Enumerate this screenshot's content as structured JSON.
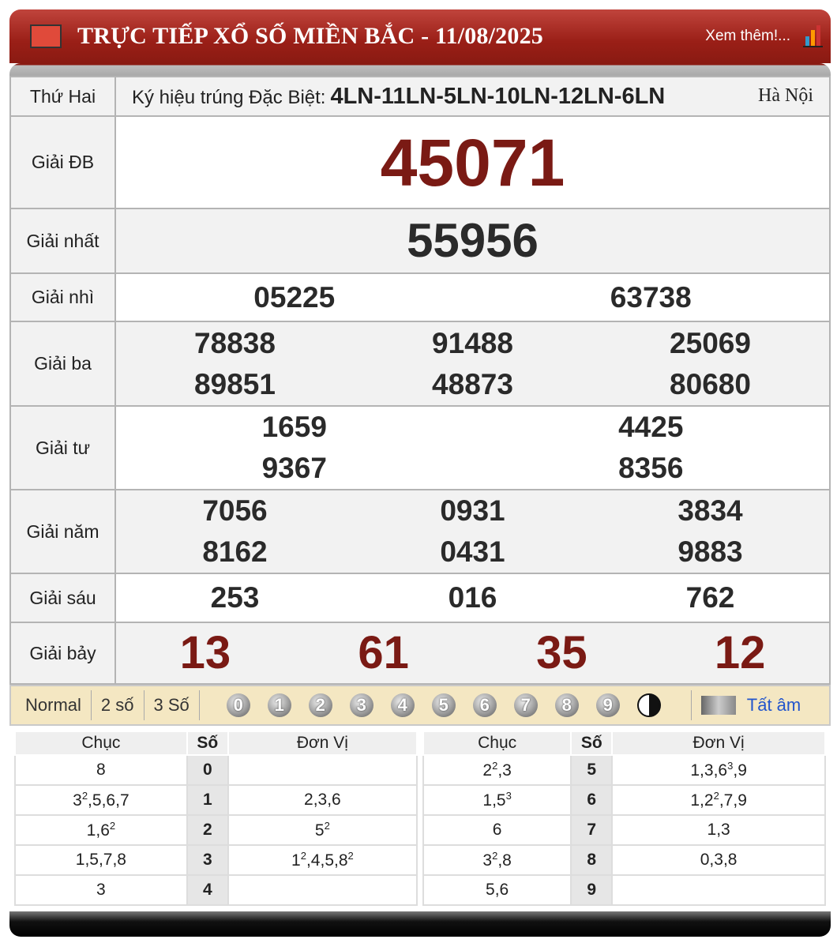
{
  "header": {
    "title": "TRỰC TIẾP XỔ SỐ MIỀN BẮC - 11/08/2025",
    "more": "Xem thêm!..."
  },
  "info": {
    "day": "Thứ Hai",
    "symbol_label": "Ký hiệu trúng Đặc Biệt:",
    "symbol": "4LN-11LN-5LN-10LN-12LN-6LN",
    "city": "Hà Nội"
  },
  "prizes": [
    {
      "label": "Giải ĐB",
      "numbers": [
        "45071"
      ]
    },
    {
      "label": "Giải nhất",
      "numbers": [
        "55956"
      ]
    },
    {
      "label": "Giải nhì",
      "numbers": [
        "05225",
        "63738"
      ]
    },
    {
      "label": "Giải ba",
      "numbers": [
        "78838",
        "91488",
        "25069",
        "89851",
        "48873",
        "80680"
      ]
    },
    {
      "label": "Giải tư",
      "numbers": [
        "1659",
        "4425",
        "9367",
        "8356"
      ]
    },
    {
      "label": "Giải năm",
      "numbers": [
        "7056",
        "0931",
        "3834",
        "8162",
        "0431",
        "9883"
      ]
    },
    {
      "label": "Giải sáu",
      "numbers": [
        "253",
        "016",
        "762"
      ]
    },
    {
      "label": "Giải bảy",
      "numbers": [
        "13",
        "61",
        "35",
        "12"
      ]
    }
  ],
  "colors": {
    "special": "#7a1a14",
    "header": "#9a1f17",
    "toolbar": "#f4e7c2"
  },
  "toolbar": {
    "modes": [
      "Normal",
      "2 số",
      "3 Số"
    ],
    "digits": [
      "0",
      "1",
      "2",
      "3",
      "4",
      "5",
      "6",
      "7",
      "8",
      "9"
    ],
    "mute": "Tất âm"
  },
  "loto": {
    "headers": [
      "Chục",
      "Số",
      "Đơn Vị"
    ],
    "rows": [
      {
        "chuc": "8",
        "so": "0",
        "donvi": ""
      },
      {
        "chuc": "3^2,5,6,7",
        "so": "1",
        "donvi": "2,3,6"
      },
      {
        "chuc": "1,6^2",
        "so": "2",
        "donvi": "5^2"
      },
      {
        "chuc": "1,5,7,8",
        "so": "3",
        "donvi": "1^2,4,5,8^2"
      },
      {
        "chuc": "3",
        "so": "4",
        "donvi": ""
      },
      {
        "chuc": "2^2,3",
        "so": "5",
        "donvi": "1,3,6^3,9"
      },
      {
        "chuc": "1,5^3",
        "so": "6",
        "donvi": "1,2^2,7,9"
      },
      {
        "chuc": "6",
        "so": "7",
        "donvi": "1,3"
      },
      {
        "chuc": "3^2,8",
        "so": "8",
        "donvi": "0,3,8"
      },
      {
        "chuc": "5,6",
        "so": "9",
        "donvi": ""
      }
    ]
  }
}
